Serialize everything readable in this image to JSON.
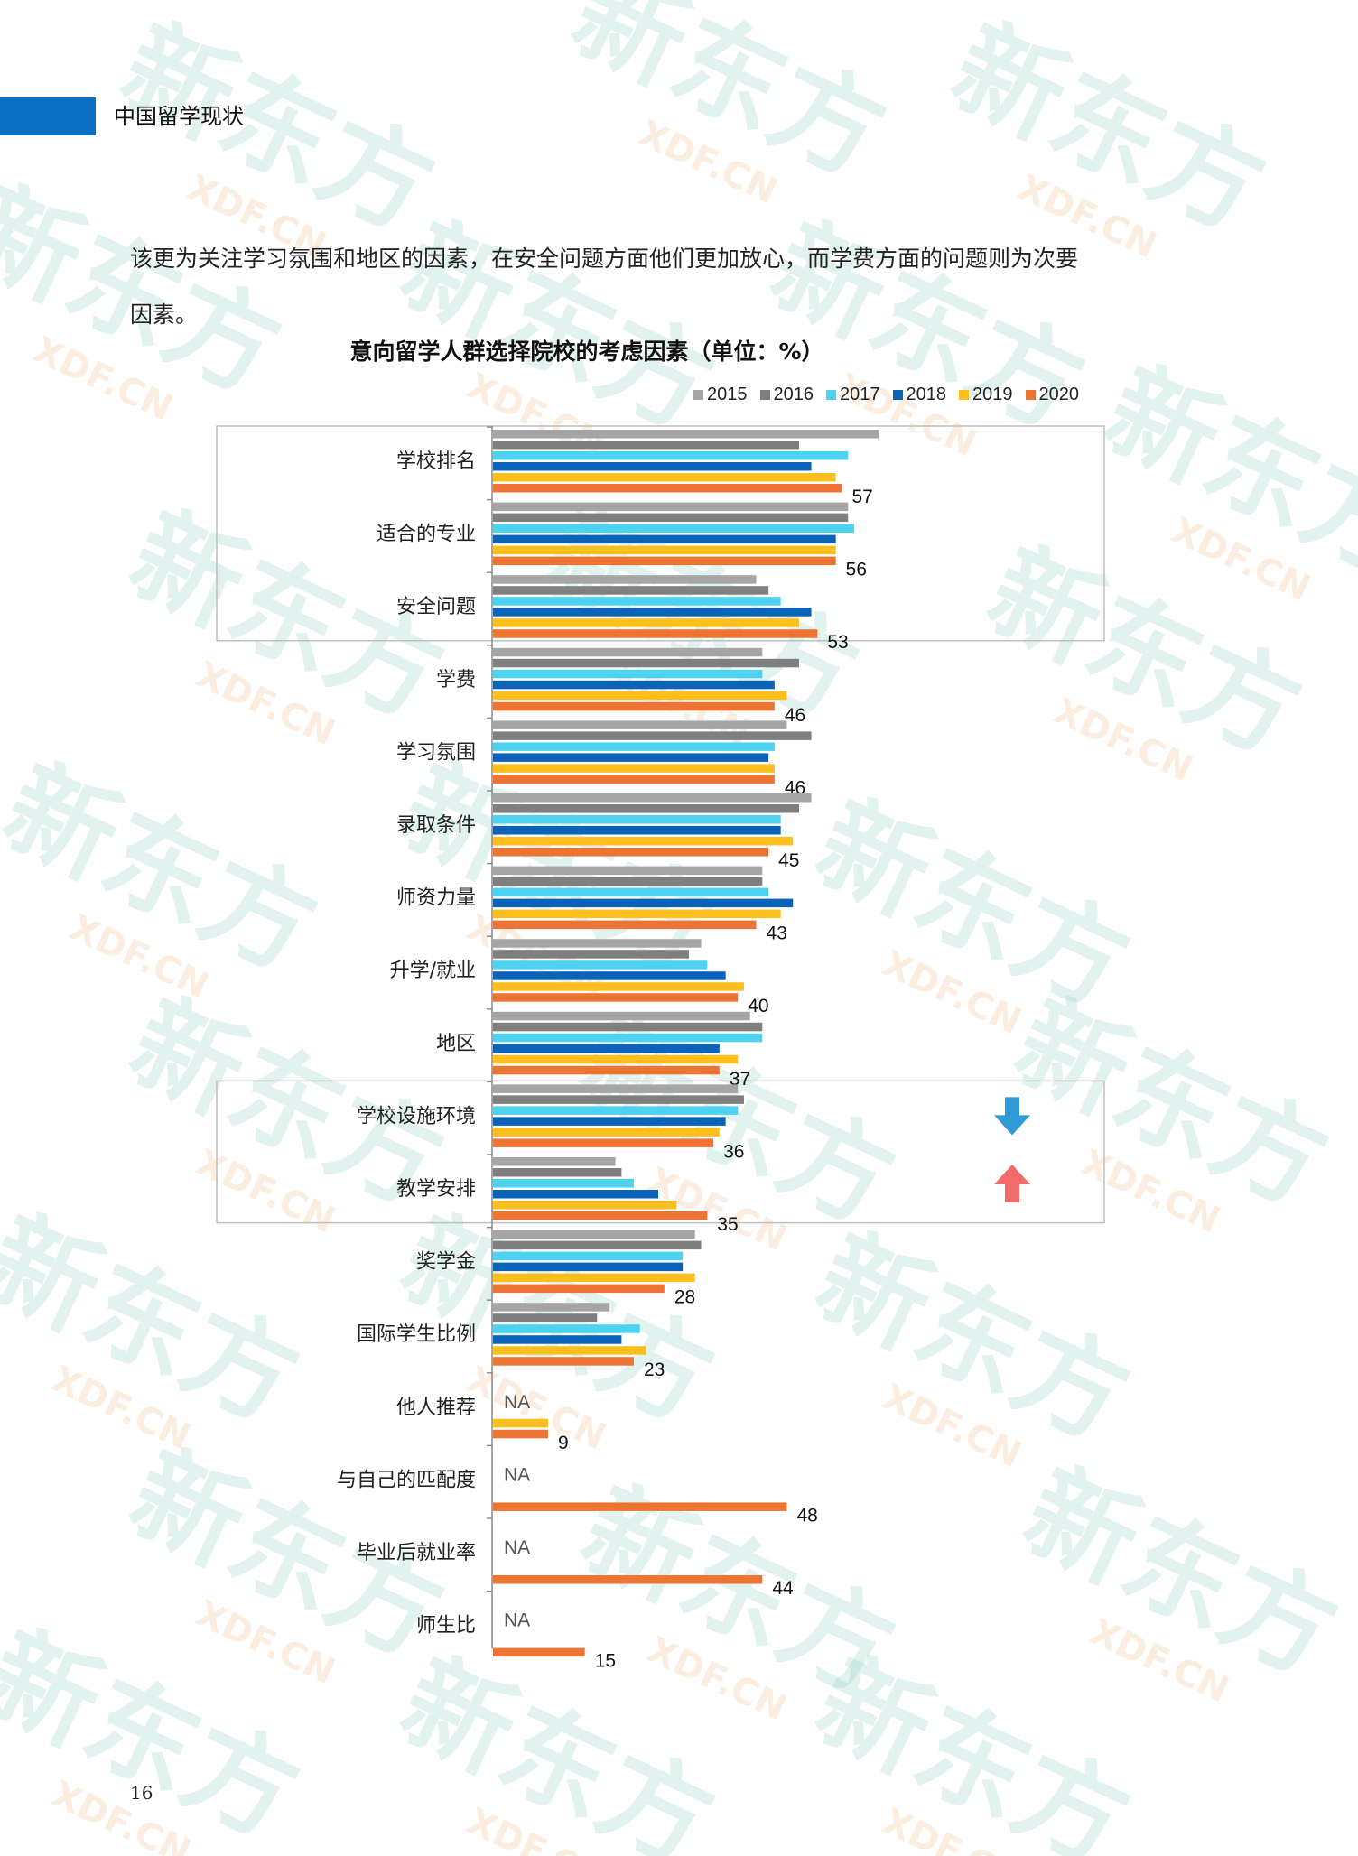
{
  "header": {
    "section_title": "中国留学现状"
  },
  "intro": {
    "line1": "该更为关注学习氛围和地区的因素，在安全问题方面他们更加放心，而学费方面的问题则为次要",
    "line2": "因素。"
  },
  "watermark": {
    "text": "新东方",
    "subtext": "XDF.CN",
    "color": "#7fc8b8"
  },
  "page_number": "16",
  "colors": {
    "2015": "#a5a5a5",
    "2016": "#7f7f7f",
    "2017": "#4dd2f0",
    "2018": "#0b63b8",
    "2019": "#fcbf1e",
    "2020": "#ed7433",
    "box_border": "#bfbfbf",
    "axis": "#888888",
    "arrow_down": "#2e9ad6",
    "arrow_up": "#f26b6b"
  },
  "chart_data": {
    "type": "bar",
    "orientation": "horizontal",
    "title": "意向留学人群选择院校的考虑因素（单位：%）",
    "legend_position": "top-right",
    "xlim": [
      0,
      100
    ],
    "missing_label": "NA",
    "categories": [
      "学校排名",
      "适合的专业",
      "安全问题",
      "学费",
      "学习氛围",
      "录取条件",
      "师资力量",
      "升学/就业",
      "地区",
      "学校设施环境",
      "教学安排",
      "奖学金",
      "国际学生比例",
      "他人推荐",
      "与自己的匹配度",
      "毕业后就业率",
      "师生比"
    ],
    "series": [
      {
        "name": "2015",
        "values": [
          63,
          58,
          43,
          44,
          48,
          52,
          44,
          34,
          42,
          40,
          20,
          33,
          19,
          null,
          null,
          null,
          null
        ]
      },
      {
        "name": "2016",
        "values": [
          50,
          58,
          45,
          50,
          52,
          50,
          44,
          32,
          44,
          41,
          21,
          34,
          17,
          null,
          null,
          null,
          null
        ]
      },
      {
        "name": "2017",
        "values": [
          58,
          59,
          47,
          44,
          46,
          47,
          45,
          35,
          44,
          40,
          23,
          31,
          24,
          null,
          null,
          null,
          null
        ]
      },
      {
        "name": "2018",
        "values": [
          52,
          56,
          52,
          46,
          45,
          47,
          49,
          38,
          37,
          38,
          27,
          31,
          21,
          null,
          null,
          null,
          null
        ]
      },
      {
        "name": "2019",
        "values": [
          56,
          56,
          50,
          48,
          46,
          49,
          47,
          41,
          40,
          37,
          30,
          33,
          25,
          9,
          null,
          null,
          null
        ]
      },
      {
        "name": "2020",
        "values": [
          57,
          56,
          53,
          46,
          46,
          45,
          43,
          40,
          37,
          36,
          35,
          28,
          23,
          9,
          48,
          44,
          15
        ]
      }
    ],
    "value_labels": [
      "57",
      "56",
      "53",
      "46",
      "46",
      "45",
      "43",
      "40",
      "37",
      "36",
      "35",
      "28",
      "23",
      "9",
      "48",
      "44",
      "15"
    ],
    "highlight_groups": [
      [
        0,
        2
      ],
      [
        9,
        10
      ]
    ],
    "arrows": [
      {
        "category_index": 9,
        "direction": "down"
      },
      {
        "category_index": 10,
        "direction": "up"
      }
    ]
  }
}
